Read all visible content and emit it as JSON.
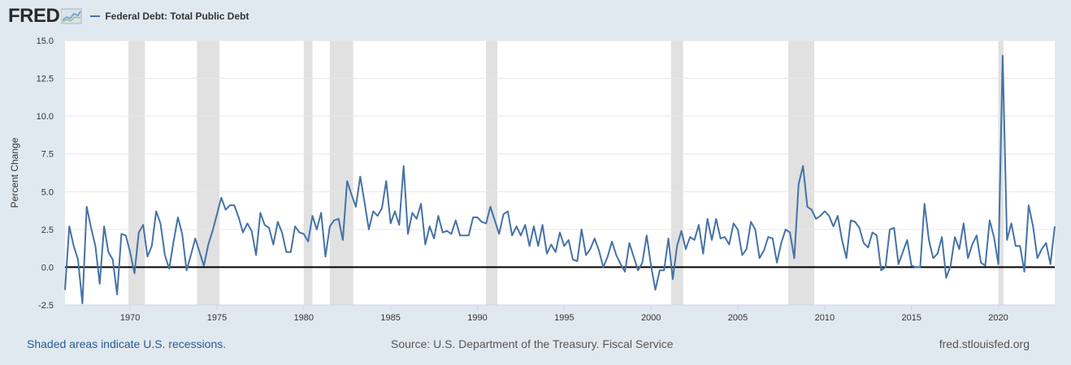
{
  "header": {
    "logo_text": "FRED",
    "logo_icon": "line-chart-icon",
    "series_label": "Federal Debt: Total Public Debt"
  },
  "colors": {
    "line": "#4572a7",
    "recession": "#e1e1e1",
    "grid": "#e6e6e6",
    "background": "#e1e9f0",
    "plot": "#ffffff"
  },
  "chart_data": {
    "type": "line",
    "title": "",
    "xlabel": "",
    "ylabel": "Percent Change",
    "xlim": [
      1966.25,
      2023.25
    ],
    "ylim": [
      -2.5,
      15.0
    ],
    "yticks": [
      -2.5,
      0.0,
      2.5,
      5.0,
      7.5,
      10.0,
      12.5,
      15.0
    ],
    "ytick_labels": [
      "-2.5",
      "0.0",
      "2.5",
      "5.0",
      "7.5",
      "10.0",
      "12.5",
      "15.0"
    ],
    "xticks": [
      1970,
      1975,
      1980,
      1985,
      1990,
      1995,
      2000,
      2005,
      2010,
      2015,
      2020
    ],
    "xtick_labels": [
      "1970",
      "1975",
      "1980",
      "1985",
      "1990",
      "1995",
      "2000",
      "2005",
      "2010",
      "2015",
      "2020"
    ],
    "grid": true,
    "legend": "top-left",
    "zero_line": true,
    "recessions": [
      [
        1969.9,
        1970.85
      ],
      [
        1973.85,
        1975.15
      ],
      [
        1980.0,
        1980.5
      ],
      [
        1981.5,
        1982.85
      ],
      [
        1990.5,
        1991.15
      ],
      [
        2001.15,
        2001.85
      ],
      [
        2007.9,
        2009.4
      ],
      [
        2020.0,
        2020.3
      ]
    ],
    "series": [
      {
        "name": "Federal Debt: Total Public Debt",
        "x": [
          1966.25,
          1966.5,
          1966.75,
          1967.0,
          1967.25,
          1967.5,
          1967.75,
          1968.0,
          1968.25,
          1968.5,
          1968.75,
          1969.0,
          1969.25,
          1969.5,
          1969.75,
          1970.0,
          1970.25,
          1970.5,
          1970.75,
          1971.0,
          1971.25,
          1971.5,
          1971.75,
          1972.0,
          1972.25,
          1972.5,
          1972.75,
          1973.0,
          1973.25,
          1973.5,
          1973.75,
          1974.0,
          1974.25,
          1974.5,
          1974.75,
          1975.0,
          1975.25,
          1975.5,
          1975.75,
          1976.0,
          1976.25,
          1976.5,
          1976.75,
          1977.0,
          1977.25,
          1977.5,
          1977.75,
          1978.0,
          1978.25,
          1978.5,
          1978.75,
          1979.0,
          1979.25,
          1979.5,
          1979.75,
          1980.0,
          1980.25,
          1980.5,
          1980.75,
          1981.0,
          1981.25,
          1981.5,
          1981.75,
          1982.0,
          1982.25,
          1982.5,
          1982.75,
          1983.0,
          1983.25,
          1983.5,
          1983.75,
          1984.0,
          1984.25,
          1984.5,
          1984.75,
          1985.0,
          1985.25,
          1985.5,
          1985.75,
          1986.0,
          1986.25,
          1986.5,
          1986.75,
          1987.0,
          1987.25,
          1987.5,
          1987.75,
          1988.0,
          1988.25,
          1988.5,
          1988.75,
          1989.0,
          1989.25,
          1989.5,
          1989.75,
          1990.0,
          1990.25,
          1990.5,
          1990.75,
          1991.0,
          1991.25,
          1991.5,
          1991.75,
          1992.0,
          1992.25,
          1992.5,
          1992.75,
          1993.0,
          1993.25,
          1993.5,
          1993.75,
          1994.0,
          1994.25,
          1994.5,
          1994.75,
          1995.0,
          1995.25,
          1995.5,
          1995.75,
          1996.0,
          1996.25,
          1996.5,
          1996.75,
          1997.0,
          1997.25,
          1997.5,
          1997.75,
          1998.0,
          1998.25,
          1998.5,
          1998.75,
          1999.0,
          1999.25,
          1999.5,
          1999.75,
          2000.0,
          2000.25,
          2000.5,
          2000.75,
          2001.0,
          2001.25,
          2001.5,
          2001.75,
          2002.0,
          2002.25,
          2002.5,
          2002.75,
          2003.0,
          2003.25,
          2003.5,
          2003.75,
          2004.0,
          2004.25,
          2004.5,
          2004.75,
          2005.0,
          2005.25,
          2005.5,
          2005.75,
          2006.0,
          2006.25,
          2006.5,
          2006.75,
          2007.0,
          2007.25,
          2007.5,
          2007.75,
          2008.0,
          2008.25,
          2008.5,
          2008.75,
          2009.0,
          2009.25,
          2009.5,
          2009.75,
          2010.0,
          2010.25,
          2010.5,
          2010.75,
          2011.0,
          2011.25,
          2011.5,
          2011.75,
          2012.0,
          2012.25,
          2012.5,
          2012.75,
          2013.0,
          2013.25,
          2013.5,
          2013.75,
          2014.0,
          2014.25,
          2014.5,
          2014.75,
          2015.0,
          2015.25,
          2015.5,
          2015.75,
          2016.0,
          2016.25,
          2016.5,
          2016.75,
          2017.0,
          2017.25,
          2017.5,
          2017.75,
          2018.0,
          2018.25,
          2018.5,
          2018.75,
          2019.0,
          2019.25,
          2019.5,
          2019.75,
          2020.0,
          2020.25,
          2020.5,
          2020.75,
          2021.0,
          2021.25,
          2021.5,
          2021.75,
          2022.0,
          2022.25,
          2022.5,
          2022.75,
          2023.0,
          2023.25
        ],
        "values": [
          -1.5,
          2.7,
          1.4,
          0.5,
          -2.4,
          4.0,
          2.6,
          1.4,
          -1.1,
          2.7,
          1.0,
          0.5,
          -1.8,
          2.2,
          2.1,
          1.0,
          -0.4,
          2.3,
          2.8,
          0.7,
          1.4,
          3.7,
          2.9,
          0.8,
          -0.1,
          1.7,
          3.3,
          2.2,
          -0.2,
          0.8,
          1.9,
          1.0,
          0.1,
          1.5,
          2.4,
          3.5,
          4.6,
          3.8,
          4.1,
          4.1,
          3.3,
          2.3,
          2.9,
          2.4,
          0.8,
          3.6,
          2.8,
          2.6,
          1.5,
          3.0,
          2.3,
          1.0,
          1.0,
          2.7,
          2.3,
          2.2,
          1.7,
          3.4,
          2.5,
          3.6,
          0.7,
          2.7,
          3.1,
          3.2,
          1.8,
          5.7,
          4.8,
          4.0,
          6.0,
          4.3,
          2.5,
          3.7,
          3.4,
          3.9,
          5.7,
          2.9,
          3.7,
          2.8,
          6.7,
          2.2,
          3.6,
          3.2,
          4.2,
          1.5,
          2.7,
          1.9,
          3.4,
          2.3,
          2.4,
          2.2,
          3.1,
          2.1,
          2.1,
          2.1,
          3.3,
          3.3,
          3.0,
          2.9,
          4.0,
          3.1,
          2.2,
          3.5,
          3.7,
          2.1,
          2.7,
          2.1,
          2.8,
          1.4,
          2.7,
          1.4,
          2.8,
          0.9,
          1.5,
          1.0,
          2.3,
          1.4,
          1.8,
          0.5,
          0.4,
          2.5,
          0.8,
          1.2,
          1.9,
          1.1,
          0.0,
          0.7,
          1.7,
          0.8,
          0.2,
          -0.3,
          1.6,
          0.7,
          -0.2,
          0.3,
          2.1,
          0.1,
          -1.5,
          -0.2,
          -0.2,
          1.9,
          -0.8,
          1.4,
          2.4,
          1.2,
          2.0,
          1.8,
          2.8,
          0.9,
          3.2,
          1.8,
          3.2,
          1.9,
          2.0,
          1.5,
          2.9,
          2.5,
          0.8,
          1.2,
          3.0,
          2.5,
          0.6,
          1.1,
          2.0,
          1.9,
          0.3,
          1.6,
          2.5,
          2.3,
          0.6,
          5.5,
          6.7,
          4.0,
          3.8,
          3.2,
          3.4,
          3.7,
          3.4,
          2.7,
          3.4,
          1.8,
          0.6,
          3.1,
          3.0,
          2.6,
          1.6,
          1.3,
          2.3,
          2.1,
          -0.2,
          0.0,
          2.5,
          2.6,
          0.2,
          1.0,
          1.8,
          0.1,
          0.0,
          0.0,
          4.2,
          1.8,
          0.6,
          0.9,
          2.0,
          -0.7,
          0.1,
          2.0,
          1.2,
          2.9,
          0.6,
          1.5,
          2.1,
          0.3,
          0.1,
          3.1,
          2.0,
          0.2,
          14.0,
          1.8,
          2.9,
          1.4,
          1.4,
          -0.3,
          4.1,
          2.7,
          0.6,
          1.2,
          1.6,
          0.2,
          2.7
        ]
      }
    ],
    "source": "Source: U.S. Department of the Treasury. Fiscal Service"
  },
  "footer": {
    "recession_note": "Shaded areas indicate U.S. recessions.",
    "source": "Source: U.S. Department of the Treasury. Fiscal Service",
    "site": "fred.stlouisfed.org"
  }
}
